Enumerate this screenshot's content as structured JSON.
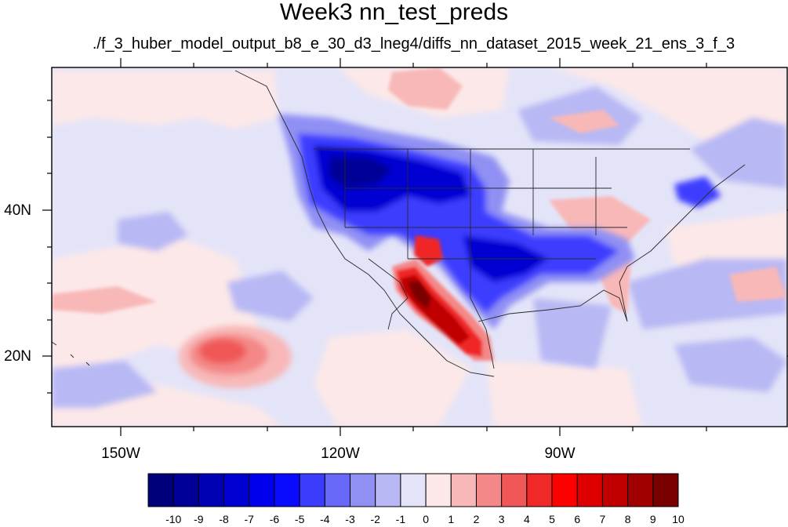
{
  "title": "Week3 nn_test_preds",
  "subtitle": "./f_3_huber_model_output_b8_e_30_d3_lneg4/diffs_nn_dataset_2015_week_21_ens_3_f_3",
  "lon_labels": [
    "150W",
    "120W",
    "90W"
  ],
  "lat_labels": [
    "40N",
    "20N"
  ],
  "colorbar": {
    "labels": [
      "-10",
      "-9",
      "-8",
      "-7",
      "-6",
      "-5",
      "-4",
      "-3",
      "-2",
      "-1",
      "0",
      "1",
      "2",
      "3",
      "4",
      "5",
      "6",
      "7",
      "8",
      "9",
      "10"
    ],
    "colors": [
      "#00007a",
      "#000096",
      "#0000b4",
      "#0000d2",
      "#0000ee",
      "#0a0aff",
      "#3c3cff",
      "#6868f8",
      "#9090f4",
      "#b8b8f4",
      "#e4e4f8",
      "#fce8e8",
      "#f8b8b8",
      "#f48888",
      "#f05858",
      "#f02828",
      "#ff0000",
      "#de0000",
      "#c00000",
      "#a00000",
      "#7a0000"
    ]
  },
  "colors": {
    "background_field": "#e4e4f8",
    "coast_lines": "#2a2a2a"
  }
}
